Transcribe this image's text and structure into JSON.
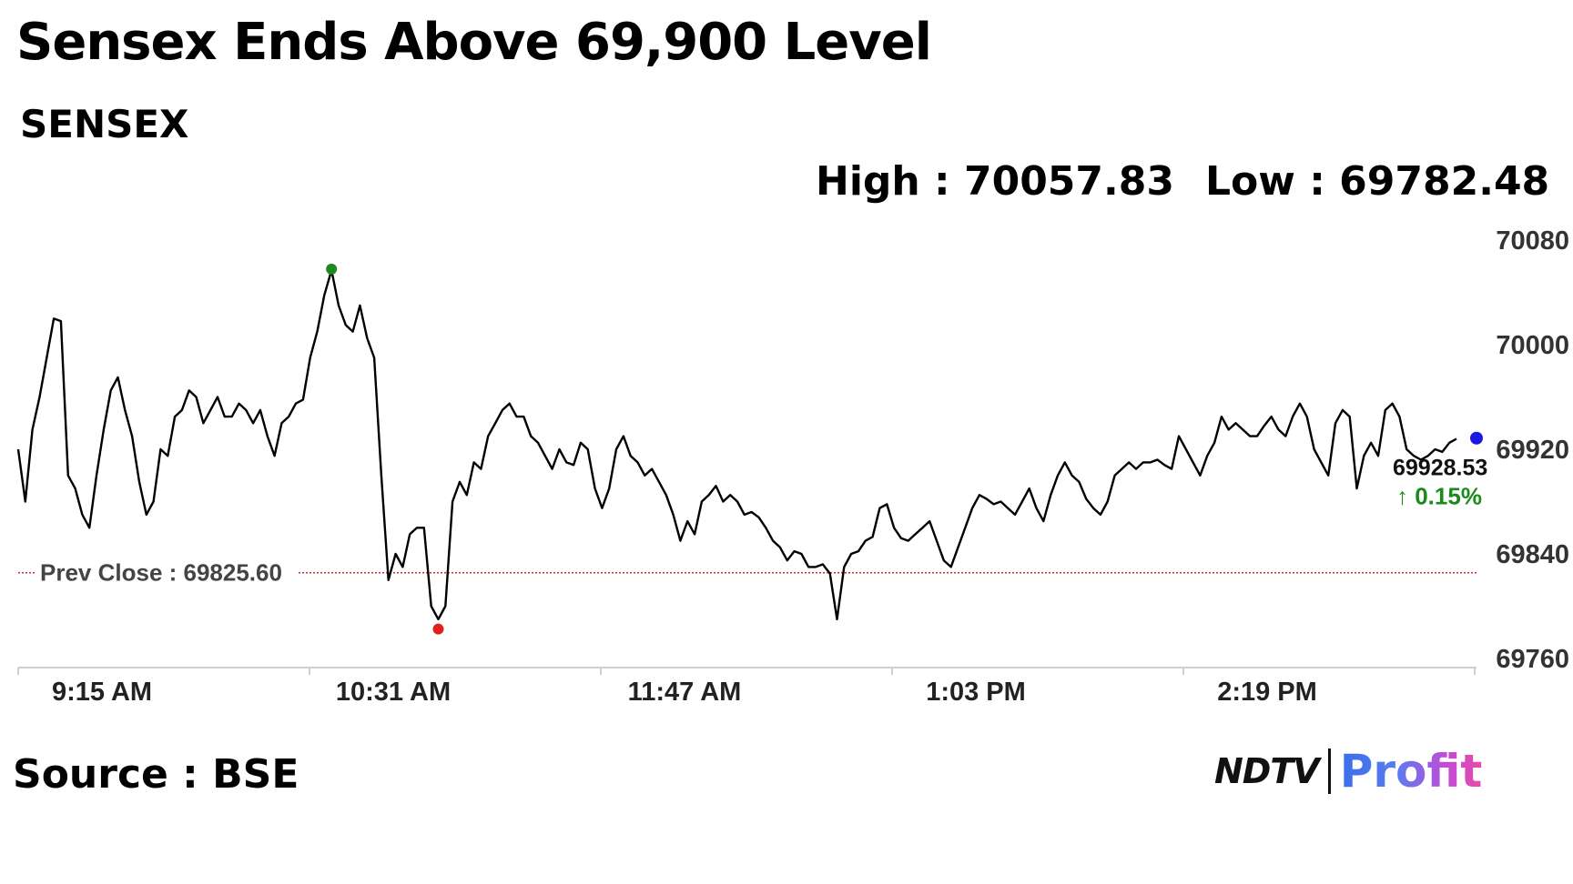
{
  "header": {
    "title": "Sensex Ends Above 69,900 Level",
    "subtitle": "SENSEX",
    "high_label": "High : 70057.83",
    "low_label": "Low : 69782.48"
  },
  "footer": {
    "source": "Source : BSE",
    "logo_left": "NDTV",
    "logo_right": "Profit"
  },
  "chart_data": {
    "type": "line",
    "x_axis_ticks": [
      "9:15 AM",
      "10:31 AM",
      "11:47 AM",
      "1:03 PM",
      "2:19 PM"
    ],
    "y_axis_ticks": [
      70080,
      70000,
      69920,
      69840,
      69760
    ],
    "ylim": [
      69760,
      70080
    ],
    "prev_close": {
      "label": "Prev Close : 69825.60",
      "value": 69825.6
    },
    "high": {
      "value": 70057.83,
      "color": "#1a8a1a"
    },
    "low": {
      "value": 69782.48,
      "color": "#e0201c"
    },
    "last": {
      "value": 69928.53,
      "label": "69928.53",
      "change": "0.15%",
      "color": "#1a1ae0"
    },
    "line_color": "#000000",
    "prev_close_color": "#c03030",
    "series": [
      {
        "values": [
          69920,
          69880,
          69935,
          69960,
          69990,
          70020,
          70018,
          69900,
          69890,
          69870,
          69860,
          69900,
          69935,
          69965,
          69975,
          69950,
          69930,
          69895,
          69870,
          69880,
          69920,
          69915,
          69945,
          69950,
          69965,
          69960,
          69940,
          69950,
          69960,
          69945,
          69945,
          69955,
          69950,
          69940,
          69950,
          69930,
          69915,
          69940,
          69945,
          69955,
          69958,
          69990,
          70010,
          70038,
          70057,
          70030,
          70015,
          70010,
          70030,
          70005,
          69990,
          69900,
          69820,
          69840,
          69830,
          69855,
          69860,
          69860,
          69800,
          69790,
          69800,
          69880,
          69895,
          69885,
          69910,
          69905,
          69930,
          69940,
          69950,
          69955,
          69945,
          69945,
          69930,
          69925,
          69915,
          69905,
          69920,
          69910,
          69908,
          69925,
          69920,
          69890,
          69875,
          69890,
          69920,
          69930,
          69915,
          69910,
          69900,
          69905,
          69895,
          69885,
          69870,
          69850,
          69865,
          69855,
          69880,
          69885,
          69892,
          69880,
          69885,
          69880,
          69870,
          69872,
          69868,
          69860,
          69850,
          69845,
          69835,
          69842,
          69840,
          69830,
          69830,
          69832,
          69825,
          69790,
          69830,
          69840,
          69842,
          69850,
          69853,
          69875,
          69878,
          69860,
          69852,
          69850,
          69855,
          69860,
          69865,
          69850,
          69835,
          69830,
          69845,
          69860,
          69875,
          69885,
          69882,
          69878,
          69880,
          69875,
          69870,
          69880,
          69890,
          69875,
          69865,
          69885,
          69900,
          69910,
          69900,
          69895,
          69882,
          69875,
          69870,
          69880,
          69900,
          69905,
          69910,
          69905,
          69910,
          69910,
          69912,
          69908,
          69905,
          69930,
          69920,
          69910,
          69900,
          69915,
          69925,
          69945,
          69935,
          69940,
          69935,
          69930,
          69930,
          69938,
          69945,
          69935,
          69930,
          69945,
          69955,
          69945,
          69920,
          69910,
          69900,
          69940,
          69950,
          69945,
          69890,
          69915,
          69925,
          69915,
          69950,
          69955,
          69945,
          69920,
          69915,
          69912,
          69915,
          69920,
          69918,
          69925,
          69928
        ]
      }
    ]
  }
}
